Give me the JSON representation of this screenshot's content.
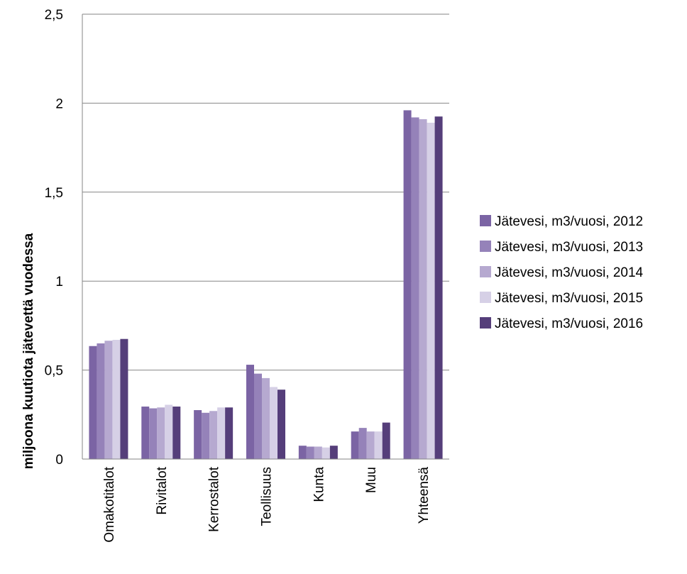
{
  "chart_data": {
    "type": "bar",
    "title": "",
    "xlabel": "",
    "ylabel": "miljoona kuutiota  jätevettä vuodessa",
    "ylim": [
      0,
      2.5
    ],
    "yticks": [
      "0",
      "0,5",
      "1",
      "1,5",
      "2",
      "2,5"
    ],
    "ytick_values": [
      0,
      0.5,
      1,
      1.5,
      2,
      2.5
    ],
    "grid": true,
    "legend_position": "right",
    "categories": [
      "Omakotitalot",
      "Rivitalot",
      "Kerrostalot",
      "Teollisuus",
      "Kunta",
      "Muu",
      "Yhteensä"
    ],
    "series": [
      {
        "name": "Jätevesi, m3/vuosi, 2012",
        "color": "#7b64a4",
        "values": [
          0.635,
          0.295,
          0.275,
          0.53,
          0.075,
          0.155,
          1.96
        ]
      },
      {
        "name": "Jätevesi, m3/vuosi, 2013",
        "color": "#9582b9",
        "values": [
          0.65,
          0.285,
          0.26,
          0.48,
          0.07,
          0.175,
          1.92
        ]
      },
      {
        "name": "Jätevesi, m3/vuosi, 2014",
        "color": "#b6a9d0",
        "values": [
          0.665,
          0.29,
          0.27,
          0.455,
          0.07,
          0.155,
          1.91
        ]
      },
      {
        "name": "Jätevesi, m3/vuosi, 2015",
        "color": "#d6d0e6",
        "values": [
          0.67,
          0.305,
          0.29,
          0.405,
          0.065,
          0.155,
          1.89
        ]
      },
      {
        "name": "Jätevesi, m3/vuosi, 2016",
        "color": "#553e7a",
        "values": [
          0.675,
          0.295,
          0.29,
          0.39,
          0.075,
          0.205,
          1.925
        ]
      }
    ]
  }
}
